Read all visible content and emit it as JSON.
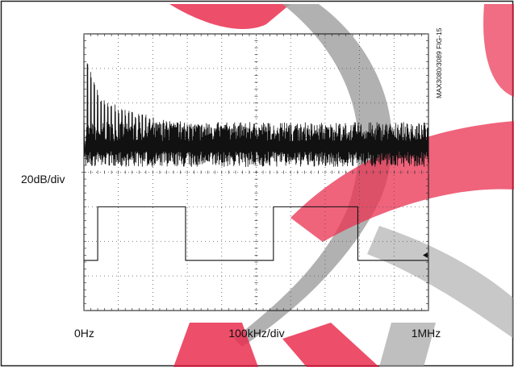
{
  "chart_data": {
    "type": "line",
    "figure_id": "MAX3080/3089 FIG-15",
    "y_scale_label": "20dB/div",
    "x_start_label": "0Hz",
    "x_scale_label": "100kHz/div",
    "x_end_label": "1MHz",
    "x_divisions": 10,
    "y_divisions": 8,
    "grid": true,
    "trigger_marker": "left-pointing arrow on right edge",
    "spectrum": {
      "fundamental_spacing_kHz": 10,
      "noise_floor_div": 4.75,
      "peak_heights_div": [
        {
          "x_kHz": 10,
          "y_div": 7.3
        },
        {
          "x_kHz": 20,
          "y_div": 6.9
        },
        {
          "x_kHz": 50,
          "y_div": 6.2
        },
        {
          "x_kHz": 100,
          "y_div": 5.9
        },
        {
          "x_kHz": 200,
          "y_div": 5.6
        },
        {
          "x_kHz": 300,
          "y_div": 5.45
        },
        {
          "x_kHz": 500,
          "y_div": 5.3
        },
        {
          "x_kHz": 700,
          "y_div": 5.2
        },
        {
          "x_kHz": 1000,
          "y_div": 5.1
        }
      ]
    },
    "square_wave": {
      "high_level_div": 3.0,
      "low_level_div": 1.45,
      "transitions_div": [
        {
          "x_div": 0.0,
          "level": "low"
        },
        {
          "x_div": 0.4,
          "level": "high"
        },
        {
          "x_div": 2.95,
          "level": "low"
        },
        {
          "x_div": 5.5,
          "level": "high"
        },
        {
          "x_div": 7.95,
          "level": "low"
        },
        {
          "x_div": 10.0,
          "level": "low"
        }
      ]
    },
    "colors": {
      "trace": "#111111",
      "grid": "#555555",
      "watermark_red": "#e8193c",
      "watermark_gray": "#9a9a9a"
    }
  }
}
